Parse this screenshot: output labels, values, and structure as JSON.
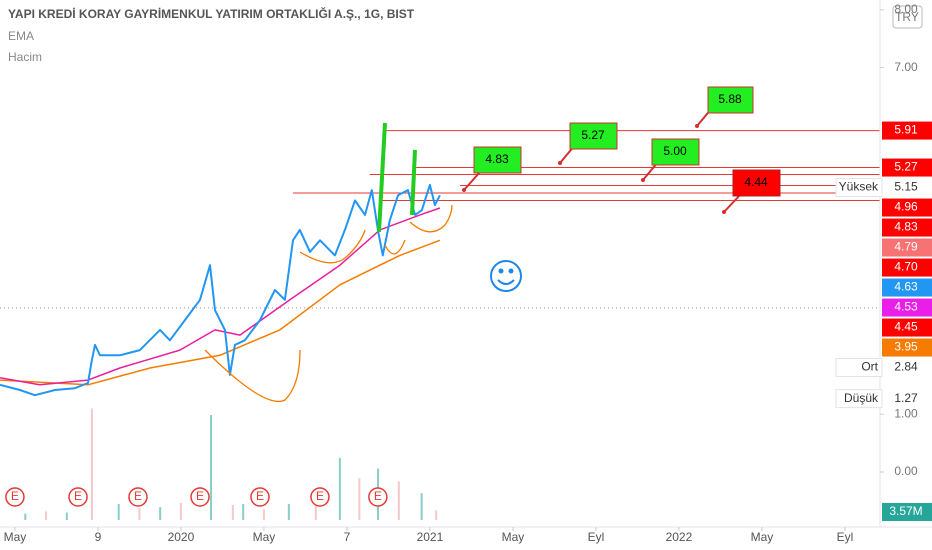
{
  "chart_data": {
    "type": "line",
    "title": "YAPI KREDİ KORAY GAYRİMENKUL YATIRIM ORTAKLIĞI A.Ş., 1G, BIST",
    "indicators": [
      "EMA",
      "Hacim"
    ],
    "currency": "TRY",
    "xlim": [
      -0.72,
      41.69
    ],
    "ylim": [
      -1.35,
      8.17
    ],
    "xticks": [
      {
        "value": 0,
        "label": "May"
      },
      {
        "value": 4,
        "label": "9"
      },
      {
        "value": 8,
        "label": "2020"
      },
      {
        "value": 12,
        "label": "May"
      },
      {
        "value": 16,
        "label": "7"
      },
      {
        "value": 20,
        "label": "2021"
      },
      {
        "value": 24,
        "label": "May"
      },
      {
        "value": 28,
        "label": "Eyl"
      },
      {
        "value": 32,
        "label": "2022"
      },
      {
        "value": 36,
        "label": "May"
      },
      {
        "value": 40,
        "label": "Eyl"
      }
    ],
    "yticks": [
      {
        "value": 8,
        "label": "8.00"
      },
      {
        "value": 7,
        "label": "7.00"
      },
      {
        "value": 1,
        "label": "1.00"
      },
      {
        "value": 0,
        "label": "0.00"
      }
    ],
    "series": [
      {
        "name": "Fiyat",
        "color": "#2196f3",
        "x": [
          -0.72,
          0.24,
          0.96,
          1.93,
          2.89,
          3.52,
          3.71,
          3.86,
          4.1,
          5.06,
          6.02,
          6.99,
          7.47,
          8.19,
          8.92,
          9.4,
          9.64,
          10.12,
          10.36,
          10.6,
          11.08,
          11.81,
          12.53,
          13.01,
          13.4,
          13.73,
          14.22,
          14.7,
          15.42,
          15.9,
          16.39,
          16.87,
          17.2,
          17.49,
          17.73,
          18.07,
          18.46,
          18.94,
          19.28,
          19.61,
          20.0,
          20.24,
          20.48
        ],
        "values": [
          1.51,
          1.42,
          1.33,
          1.42,
          1.45,
          1.54,
          1.94,
          2.2,
          2.02,
          2.02,
          2.11,
          2.46,
          2.28,
          2.63,
          2.98,
          3.58,
          2.8,
          2.46,
          1.68,
          2.2,
          2.28,
          2.63,
          3.15,
          2.98,
          4.01,
          4.19,
          3.81,
          4.01,
          3.75,
          4.19,
          4.7,
          4.45,
          4.88,
          4.19,
          3.75,
          4.36,
          4.79,
          4.88,
          4.45,
          4.53,
          4.97,
          4.62,
          4.79
        ]
      },
      {
        "name": "EMA",
        "color": "#e91e9e",
        "x": [
          -0.72,
          1.2,
          3.52,
          5.06,
          7.95,
          9.64,
          10.84,
          13.25,
          15.66,
          17.59,
          19.52,
          20.48
        ],
        "values": [
          1.63,
          1.51,
          1.59,
          1.8,
          2.11,
          2.46,
          2.37,
          2.98,
          3.58,
          4.19,
          4.45,
          4.57
        ]
      },
      {
        "name": "EMA",
        "color": "#f57c00",
        "x": [
          -0.72,
          3.52,
          6.51,
          9.88,
          12.77,
          15.66,
          18.55,
          20.48
        ],
        "values": [
          1.59,
          1.51,
          1.8,
          2.02,
          2.46,
          3.24,
          3.75,
          4.01
        ]
      }
    ],
    "volume": {
      "color": "#26a69a",
      "ylim": [
        0,
        14
      ],
      "x": [
        0.5,
        1.5,
        2.5,
        3.71,
        5.0,
        6.0,
        7.0,
        8.0,
        9.45,
        10.5,
        11.0,
        12.0,
        13.2,
        14.5,
        15.66,
        16.6,
        17.5,
        18.5,
        19.6,
        20.3
      ],
      "values": [
        0.6,
        0.8,
        0.7,
        10.4,
        1.5,
        1.1,
        1.2,
        1.6,
        9.8,
        1.4,
        1.5,
        1.0,
        1.5,
        2.2,
        5.8,
        3.9,
        4.8,
        3.6,
        2.5,
        0.9
      ],
      "last": {
        "value": 3.57,
        "label": "3.57M"
      }
    },
    "earnings": {
      "label": "E",
      "x": [
        0,
        3.04,
        5.93,
        8.92,
        11.81,
        14.7,
        17.49
      ]
    },
    "levels": [
      {
        "value": 5.91,
        "from": 17.83
      },
      {
        "value": 5.27,
        "from": 19.28
      },
      {
        "value": 5.15,
        "from": 17.1
      },
      {
        "value": 4.96,
        "from": 21.45
      },
      {
        "value": 4.83,
        "from": 13.4
      },
      {
        "value": 4.7,
        "from": 17.59
      }
    ],
    "average": 2.84,
    "price_labels": [
      {
        "value": 5.91,
        "color": "#ff0000"
      },
      {
        "value": 5.27,
        "color": "#ff0000"
      },
      {
        "value": 5.15,
        "color": "#ffffff",
        "tag": "Yüksek"
      },
      {
        "value": 4.96,
        "color": "#ff0000"
      },
      {
        "value": 4.83,
        "color": "#ff0000"
      },
      {
        "value": 4.79,
        "color": "#f77272"
      },
      {
        "value": 4.7,
        "label": "4.70",
        "color": "#ff0000"
      },
      {
        "value": 4.63,
        "color": "#2196f3"
      },
      {
        "value": 4.53,
        "color": "#e91ee9"
      },
      {
        "value": 4.45,
        "color": "#ff0000"
      },
      {
        "value": 3.95,
        "color": "#f57c00"
      },
      {
        "value": 2.84,
        "color": "#ffffff",
        "tag": "Ort"
      },
      {
        "value": 1.27,
        "color": "#ffffff",
        "tag": "Düşük"
      }
    ],
    "callouts": [
      "5.88",
      "5.27",
      "4.83",
      "5.00",
      "4.44"
    ]
  }
}
